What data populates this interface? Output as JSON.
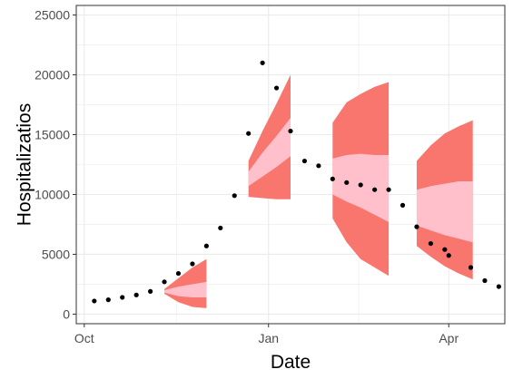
{
  "chart_data": {
    "type": "scatter",
    "xlabel": "Date",
    "ylabel": "Hospitalizatios",
    "ylim": [
      -800,
      25800
    ],
    "xlim": [
      "2020-09-27",
      "2021-04-29"
    ],
    "grid": true,
    "x_ticks": [
      {
        "date": "2020-10-01",
        "label": "Oct"
      },
      {
        "date": "2021-01-01",
        "label": "Jan"
      },
      {
        "date": "2021-04-01",
        "label": "Apr"
      }
    ],
    "y_ticks": [
      0,
      5000,
      10000,
      15000,
      20000,
      25000
    ],
    "y_tick_labels": [
      "0",
      "5000",
      "10000",
      "15000",
      "20000",
      "25000"
    ],
    "colors": {
      "outer_band": "#F8766D",
      "inner_band": "#FFC0CB",
      "points": "#000000",
      "grid": "#ebebeb",
      "border": "#333333"
    },
    "series": [
      {
        "type": "scatter",
        "points": [
          {
            "x": "2020-10-06",
            "y": 1100
          },
          {
            "x": "2020-10-13",
            "y": 1200
          },
          {
            "x": "2020-10-20",
            "y": 1400
          },
          {
            "x": "2020-10-27",
            "y": 1600
          },
          {
            "x": "2020-11-03",
            "y": 1900
          },
          {
            "x": "2020-11-10",
            "y": 2700
          },
          {
            "x": "2020-11-17",
            "y": 3400
          },
          {
            "x": "2020-11-24",
            "y": 4200
          },
          {
            "x": "2020-12-01",
            "y": 5700
          },
          {
            "x": "2020-12-08",
            "y": 7200
          },
          {
            "x": "2020-12-15",
            "y": 9900
          },
          {
            "x": "2020-12-22",
            "y": 15100
          },
          {
            "x": "2020-12-29",
            "y": 21000
          },
          {
            "x": "2021-01-05",
            "y": 18900
          },
          {
            "x": "2021-01-12",
            "y": 15300
          },
          {
            "x": "2021-01-19",
            "y": 12800
          },
          {
            "x": "2021-01-26",
            "y": 12400
          },
          {
            "x": "2021-02-02",
            "y": 11300
          },
          {
            "x": "2021-02-09",
            "y": 11000
          },
          {
            "x": "2021-02-16",
            "y": 10800
          },
          {
            "x": "2021-02-23",
            "y": 10400
          },
          {
            "x": "2021-03-02",
            "y": 10400
          },
          {
            "x": "2021-03-09",
            "y": 9100
          },
          {
            "x": "2021-03-16",
            "y": 7300
          },
          {
            "x": "2021-03-23",
            "y": 5900
          },
          {
            "x": "2021-03-30",
            "y": 5400
          },
          {
            "x": "2021-04-01",
            "y": 4900
          },
          {
            "x": "2021-04-12",
            "y": 3900
          },
          {
            "x": "2021-04-19",
            "y": 2800
          },
          {
            "x": "2021-04-26",
            "y": 2300
          }
        ]
      },
      {
        "type": "band",
        "intervals": [
          {
            "x": [
              "2020-11-10",
              "2020-11-17",
              "2020-11-24",
              "2020-12-01"
            ],
            "outer_lo": [
              1700,
              1000,
              600,
              500
            ],
            "outer_hi": [
              2100,
              3000,
              3900,
              4600
            ],
            "inner_lo": [
              1800,
              1500,
              1400,
              1400
            ],
            "inner_hi": [
              2000,
              2300,
              2500,
              2700
            ]
          },
          {
            "x": [
              "2020-12-22",
              "2020-12-29",
              "2021-01-05",
              "2021-01-12"
            ],
            "outer_lo": [
              9800,
              9700,
              9600,
              9600
            ],
            "outer_hi": [
              12800,
              15300,
              17600,
              20000
            ],
            "inner_lo": [
              10700,
              11500,
              12300,
              13200
            ],
            "inner_hi": [
              11900,
              13500,
              14900,
              16400
            ]
          },
          {
            "x": [
              "2021-02-02",
              "2021-02-09",
              "2021-02-16",
              "2021-02-23",
              "2021-03-02"
            ],
            "outer_lo": [
              8000,
              6000,
              4600,
              3900,
              3200
            ],
            "outer_hi": [
              16000,
              17700,
              18400,
              19000,
              19400
            ],
            "inner_lo": [
              10000,
              9400,
              8900,
              8300,
              7700
            ],
            "inner_hi": [
              13000,
              13300,
              13400,
              13300,
              13300
            ]
          },
          {
            "x": [
              "2021-03-16",
              "2021-03-23",
              "2021-03-30",
              "2021-04-06",
              "2021-04-13"
            ],
            "outer_lo": [
              5700,
              4800,
              4000,
              3400,
              2900
            ],
            "outer_hi": [
              12800,
              14100,
              15100,
              15700,
              16200
            ],
            "inner_lo": [
              7400,
              7000,
              6600,
              6300,
              6000
            ],
            "inner_hi": [
              10400,
              10700,
              10900,
              11100,
              11100
            ]
          }
        ]
      }
    ]
  }
}
